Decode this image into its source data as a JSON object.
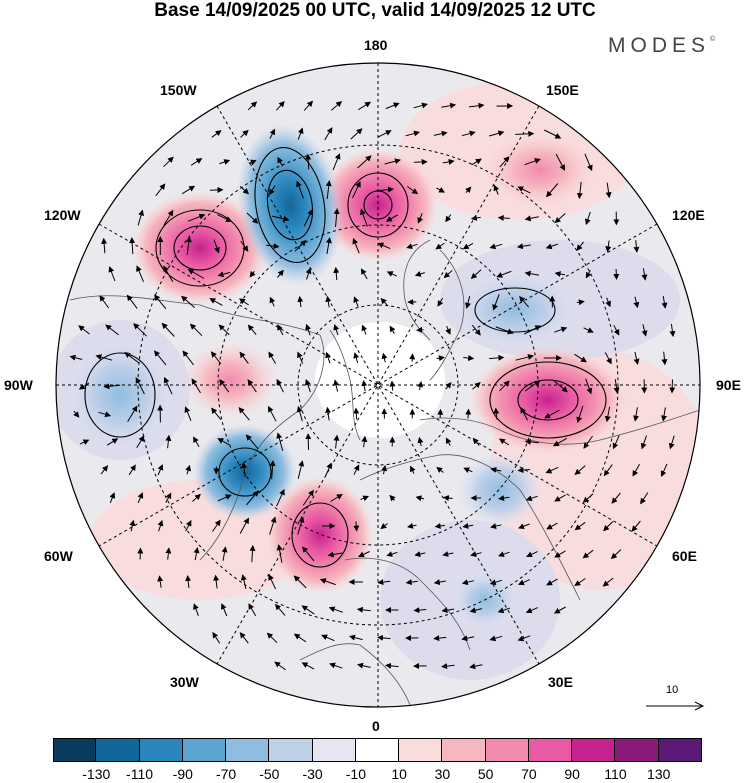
{
  "title": "Base 14/09/2025 00 UTC, valid 14/09/2025 12 UTC",
  "brand": {
    "name": "MODES",
    "mark": "©"
  },
  "longitude_labels": {
    "top": "180",
    "bottom": "0",
    "left": "90W",
    "right": "90E",
    "upper_left_1": "150W",
    "upper_left_2": "120W",
    "lower_left_1": "60W",
    "lower_left_2": "30W",
    "upper_right_1": "150E",
    "upper_right_2": "120E",
    "lower_right_1": "60E",
    "lower_right_2": "30E"
  },
  "reference_vector": {
    "label": "10"
  },
  "colorbar": {
    "colors": [
      "#0a3a5c",
      "#13669a",
      "#2a86bd",
      "#5aa4d0",
      "#90bddf",
      "#bfd0e9",
      "#e6e6f2",
      "#ffffff",
      "#fbdcdc",
      "#f6b8c0",
      "#f28aae",
      "#ea5aa4",
      "#c7238f",
      "#8b1a7a",
      "#5c1a78"
    ],
    "tick_labels": [
      "-130",
      "-110",
      "-90",
      "-70",
      "-50",
      "-30",
      "-10",
      "10",
      "30",
      "50",
      "70",
      "90",
      "110",
      "130"
    ]
  }
}
